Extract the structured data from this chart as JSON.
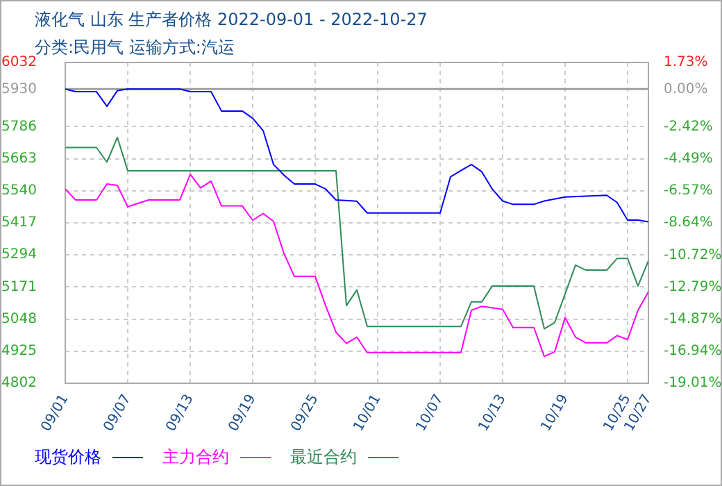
{
  "chart_data": {
    "type": "line",
    "title": "液化气 山东 生产者价格 2022-09-01 - 2022-10-27",
    "subtitle": "分类:民用气 运输方式:汽运",
    "xlim": [
      "2022-09-01",
      "2022-10-27"
    ],
    "xticks": [
      {
        "value": "2022-09-01",
        "label": "09/01"
      },
      {
        "value": "2022-09-07",
        "label": "09/07"
      },
      {
        "value": "2022-09-13",
        "label": "09/13"
      },
      {
        "value": "2022-09-19",
        "label": "09/19"
      },
      {
        "value": "2022-09-25",
        "label": "09/25"
      },
      {
        "value": "2022-10-01",
        "label": "10/01"
      },
      {
        "value": "2022-10-07",
        "label": "10/07"
      },
      {
        "value": "2022-10-13",
        "label": "10/13"
      },
      {
        "value": "2022-10-19",
        "label": "10/19"
      },
      {
        "value": "2022-10-25",
        "label": "10/25"
      },
      {
        "value": "2022-10-27",
        "label": "10/27"
      }
    ],
    "ylim": [
      4802,
      6032
    ],
    "yticks": [
      4802,
      4925,
      5048,
      5171,
      5294,
      5417,
      5540,
      5663,
      5786,
      5930,
      6032
    ],
    "y2lim": [
      -19.01,
      1.73
    ],
    "y2ticks": [
      {
        "value": -19.01,
        "label": "-19.01%"
      },
      {
        "value": -16.94,
        "label": "-16.94%"
      },
      {
        "value": -14.87,
        "label": "-14.87%"
      },
      {
        "value": -12.79,
        "label": "-12.79%"
      },
      {
        "value": -10.72,
        "label": "-10.72%"
      },
      {
        "value": -8.64,
        "label": "-8.64%"
      },
      {
        "value": -6.57,
        "label": "-6.57%"
      },
      {
        "value": -4.49,
        "label": "-4.49%"
      },
      {
        "value": -2.42,
        "label": "-2.42%"
      },
      {
        "value": 0,
        "label": "0.00%"
      },
      {
        "value": 1.73,
        "label": "1.73%"
      }
    ],
    "ref_lines": [
      {
        "axis": "y",
        "value": 5930,
        "color": "#a0a0a0"
      }
    ],
    "grid": true,
    "legend": "bottom",
    "marker": "none",
    "line_style": "solid",
    "series": [
      {
        "name": "现货价格",
        "color": "#0000ff",
        "x": [
          "2022-09-01",
          "2022-09-02",
          "2022-09-04",
          "2022-09-05",
          "2022-09-06",
          "2022-09-07",
          "2022-09-12",
          "2022-09-13",
          "2022-09-15",
          "2022-09-16",
          "2022-09-18",
          "2022-09-19",
          "2022-09-20",
          "2022-09-21",
          "2022-09-22",
          "2022-09-23",
          "2022-09-25",
          "2022-09-26",
          "2022-09-27",
          "2022-09-29",
          "2022-09-30",
          "2022-10-07",
          "2022-10-08",
          "2022-10-09",
          "2022-10-10",
          "2022-10-11",
          "2022-10-12",
          "2022-10-13",
          "2022-10-14",
          "2022-10-16",
          "2022-10-17",
          "2022-10-19",
          "2022-10-23",
          "2022-10-24",
          "2022-10-25",
          "2022-10-26",
          "2022-10-27"
        ],
        "values": [
          5930,
          5920,
          5920,
          5864,
          5924,
          5930,
          5930,
          5920,
          5920,
          5846,
          5846,
          5818,
          5771,
          5641,
          5600,
          5566,
          5566,
          5547,
          5505,
          5500,
          5455,
          5455,
          5594,
          5618,
          5641,
          5613,
          5547,
          5501,
          5488,
          5488,
          5501,
          5516,
          5523,
          5495,
          5428,
          5428,
          5421
        ]
      },
      {
        "name": "主力合约",
        "color": "#ff00ff",
        "x": [
          "2022-09-01",
          "2022-09-02",
          "2022-09-04",
          "2022-09-05",
          "2022-09-06",
          "2022-09-07",
          "2022-09-09",
          "2022-09-12",
          "2022-09-13",
          "2022-09-14",
          "2022-09-15",
          "2022-09-16",
          "2022-09-18",
          "2022-09-19",
          "2022-09-20",
          "2022-09-21",
          "2022-09-22",
          "2022-09-23",
          "2022-09-25",
          "2022-09-26",
          "2022-09-27",
          "2022-09-28",
          "2022-09-29",
          "2022-09-30",
          "2022-10-09",
          "2022-10-10",
          "2022-10-11",
          "2022-10-13",
          "2022-10-14",
          "2022-10-16",
          "2022-10-17",
          "2022-10-18",
          "2022-10-19",
          "2022-10-20",
          "2022-10-21",
          "2022-10-23",
          "2022-10-24",
          "2022-10-25",
          "2022-10-26",
          "2022-10-27"
        ],
        "values": [
          5547,
          5505,
          5505,
          5566,
          5561,
          5479,
          5505,
          5505,
          5603,
          5551,
          5577,
          5482,
          5482,
          5427,
          5453,
          5423,
          5300,
          5212,
          5212,
          5100,
          4998,
          4955,
          4979,
          4920,
          4920,
          5082,
          5097,
          5086,
          5016,
          5016,
          4905,
          4923,
          5054,
          4979,
          4957,
          4957,
          4985,
          4970,
          5082,
          5153
        ]
      },
      {
        "name": "最近合约",
        "color": "#2e8b57",
        "x": [
          "2022-09-01",
          "2022-09-04",
          "2022-09-05",
          "2022-09-06",
          "2022-09-07",
          "2022-09-27",
          "2022-09-28",
          "2022-09-29",
          "2022-09-30",
          "2022-10-09",
          "2022-10-10",
          "2022-10-11",
          "2022-10-12",
          "2022-10-16",
          "2022-10-17",
          "2022-10-18",
          "2022-10-20",
          "2022-10-21",
          "2022-10-23",
          "2022-10-24",
          "2022-10-25",
          "2022-10-26",
          "2022-10-27"
        ],
        "values": [
          5706,
          5706,
          5650,
          5745,
          5617,
          5617,
          5100,
          5160,
          5020,
          5020,
          5114,
          5114,
          5175,
          5175,
          5011,
          5035,
          5255,
          5236,
          5236,
          5281,
          5281,
          5175,
          5272
        ]
      }
    ]
  }
}
